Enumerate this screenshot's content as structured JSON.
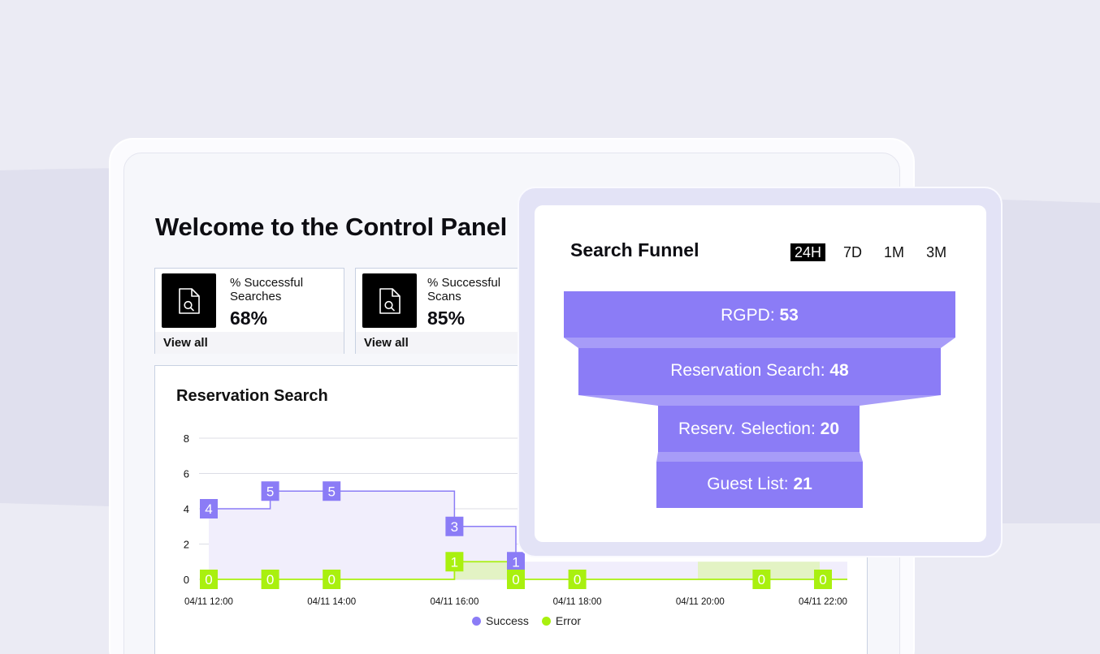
{
  "title": "Welcome to the Control Panel",
  "kpis": [
    {
      "label_line1": "% Successful",
      "label_line2": "Searches",
      "value": "68%",
      "link": "View all",
      "icon": "search-document-icon"
    },
    {
      "label_line1": "% Successful",
      "label_line2": "Scans",
      "value": "85%",
      "link": "View all",
      "icon": "search-document-icon"
    }
  ],
  "chart": {
    "title": "Reservation Search",
    "legend": {
      "success": "Success",
      "error": "Error"
    }
  },
  "chart_data": {
    "type": "line",
    "title": "Reservation Search",
    "x": [
      "04/11 12:00",
      "04/11 14:00",
      "04/11 16:00",
      "04/11 18:00",
      "04/11 20:00",
      "04/11 22:00"
    ],
    "ylim": [
      0,
      8
    ],
    "yticks": [
      0,
      2,
      4,
      6,
      8
    ],
    "step": true,
    "grid": true,
    "legend_position": "bottom",
    "series": [
      {
        "name": "Success",
        "color": "#8b7cf6",
        "points": [
          [
            "04/11 12:00",
            4
          ],
          [
            "04/11 13:00",
            5
          ],
          [
            "04/11 14:00",
            5
          ],
          [
            "04/11 16:00",
            3
          ],
          [
            "04/11 17:00",
            1
          ]
        ],
        "labels": [
          "4",
          "5",
          "5",
          "3",
          "1"
        ]
      },
      {
        "name": "Error",
        "color": "#a9f00f",
        "points": [
          [
            "04/11 12:00",
            0
          ],
          [
            "04/11 13:00",
            0
          ],
          [
            "04/11 14:00",
            0
          ],
          [
            "04/11 16:00",
            1
          ],
          [
            "04/11 17:00",
            0
          ],
          [
            "04/11 18:00",
            0
          ],
          [
            "04/11 21:00",
            0
          ],
          [
            "04/11 22:00",
            0
          ]
        ],
        "labels": [
          "0",
          "0",
          "0",
          "1",
          "0",
          "0",
          "0",
          "0"
        ]
      }
    ]
  },
  "funnel": {
    "title": "Search Funnel",
    "ranges": [
      "24H",
      "7D",
      "1M",
      "3M"
    ],
    "active_range": "24H",
    "stages": [
      {
        "label": "RGPD:",
        "value": "53"
      },
      {
        "label": "Reservation Search:",
        "value": "48"
      },
      {
        "label": "Reserv. Selection:",
        "value": "20"
      },
      {
        "label": "Guest List:",
        "value": "21"
      }
    ],
    "color": "#8b7cf6"
  }
}
